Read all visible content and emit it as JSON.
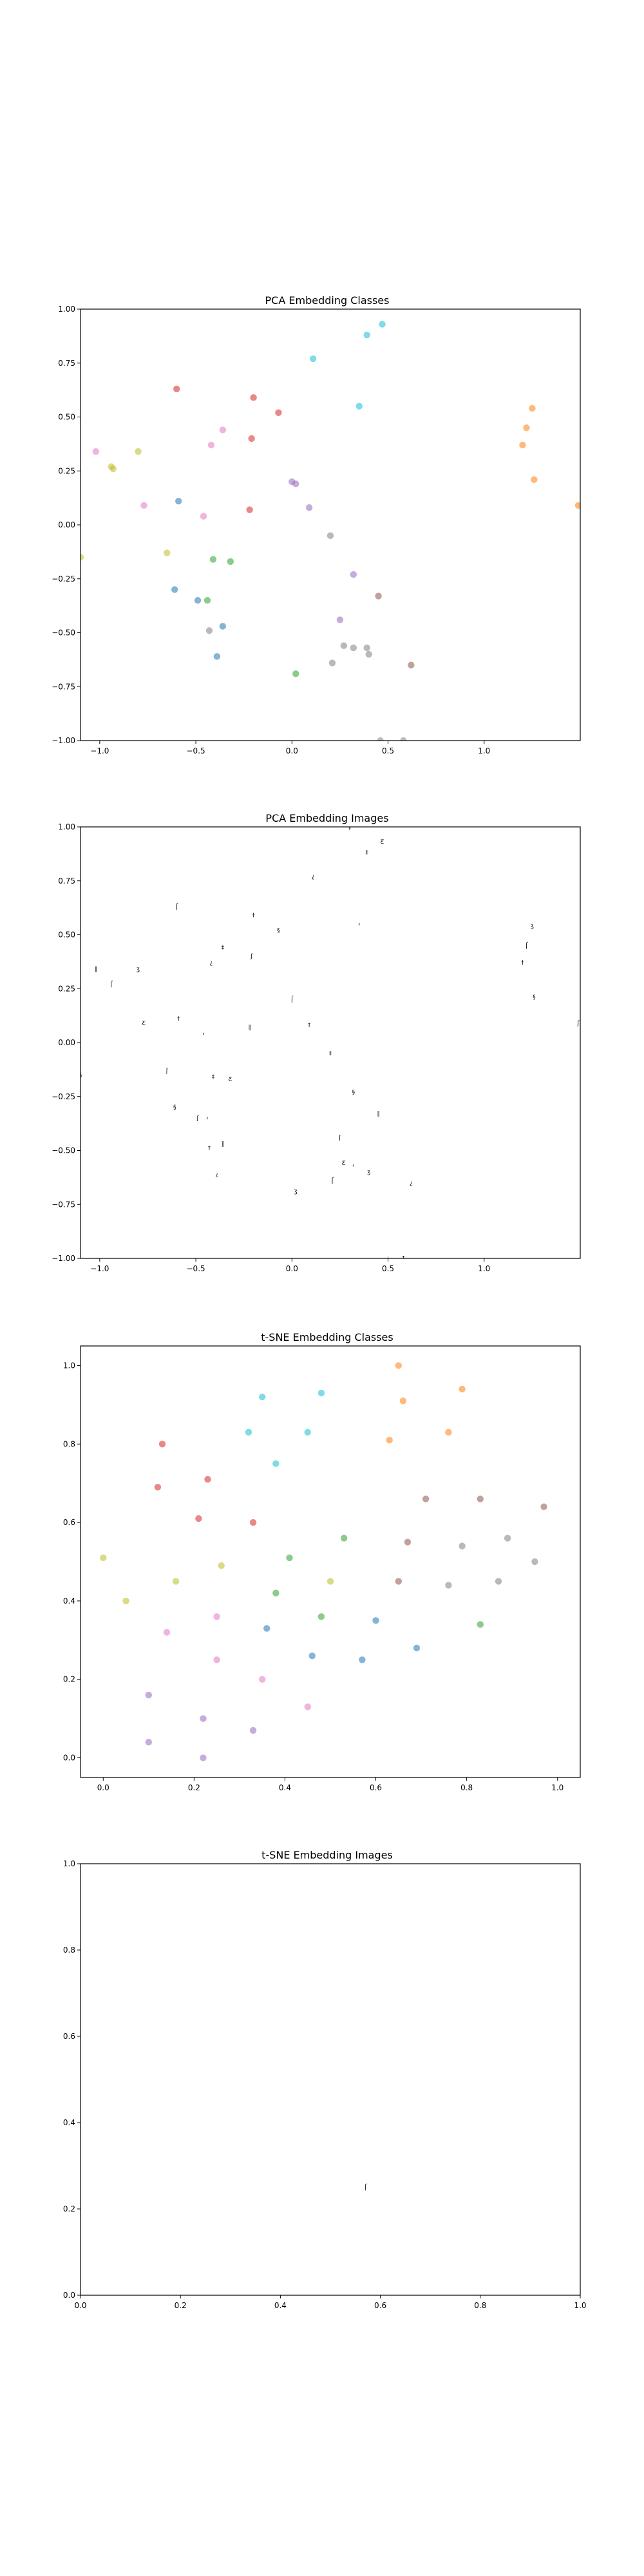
{
  "chart_data": [
    {
      "type": "scatter",
      "title": "PCA Embedding Classes",
      "xlim": [
        -1.1,
        1.5
      ],
      "ylim": [
        -1.0,
        1.0
      ],
      "xticks": [
        -1.0,
        -0.5,
        0.0,
        0.5,
        1.0
      ],
      "yticks": [
        -1.0,
        -0.75,
        -0.5,
        -0.25,
        0.0,
        0.25,
        0.5,
        0.75,
        1.0
      ],
      "xtick_labels": [
        "−1.0",
        "−0.5",
        "0.0",
        "0.5",
        "1.0"
      ],
      "ytick_labels": [
        "−1.00",
        "−0.75",
        "−0.50",
        "−0.25",
        "0.00",
        "0.25",
        "0.50",
        "0.75",
        "1.00"
      ],
      "grid": false,
      "series": [
        {
          "color": "#d62728",
          "points": [
            [
              -0.6,
              0.63
            ],
            [
              -0.2,
              0.59
            ],
            [
              -0.07,
              0.52
            ],
            [
              -0.21,
              0.4
            ],
            [
              -0.22,
              0.07
            ]
          ]
        },
        {
          "color": "#17becf",
          "points": [
            [
              0.11,
              0.77
            ],
            [
              0.39,
              0.88
            ],
            [
              0.47,
              0.93
            ],
            [
              0.35,
              0.55
            ]
          ]
        },
        {
          "color": "#ff7f0e",
          "points": [
            [
              1.25,
              0.54
            ],
            [
              1.22,
              0.45
            ],
            [
              1.2,
              0.37
            ],
            [
              1.26,
              0.21
            ],
            [
              1.49,
              0.09
            ]
          ]
        },
        {
          "color": "#e377c2",
          "points": [
            [
              -1.02,
              0.34
            ],
            [
              -0.42,
              0.37
            ],
            [
              -0.36,
              0.44
            ],
            [
              -0.77,
              0.09
            ],
            [
              -0.46,
              0.04
            ]
          ]
        },
        {
          "color": "#bcbd22",
          "points": [
            [
              -0.8,
              0.34
            ],
            [
              -0.94,
              0.27
            ],
            [
              -0.93,
              0.26
            ],
            [
              -0.65,
              -0.13
            ],
            [
              -1.1,
              -0.15
            ]
          ]
        },
        {
          "color": "#1f77b4",
          "points": [
            [
              -0.59,
              0.11
            ],
            [
              -0.61,
              -0.3
            ],
            [
              -0.49,
              -0.35
            ],
            [
              -0.36,
              -0.47
            ],
            [
              -0.39,
              -0.61
            ]
          ]
        },
        {
          "color": "#2ca02c",
          "points": [
            [
              -0.41,
              -0.16
            ],
            [
              -0.32,
              -0.17
            ],
            [
              -0.44,
              -0.35
            ],
            [
              0.02,
              -0.69
            ]
          ]
        },
        {
          "color": "#9467bd",
          "points": [
            [
              0.0,
              0.2
            ],
            [
              0.02,
              0.19
            ],
            [
              0.09,
              0.08
            ],
            [
              0.32,
              -0.23
            ],
            [
              0.25,
              -0.44
            ]
          ]
        },
        {
          "color": "#8c564b",
          "points": [
            [
              0.45,
              -0.33
            ],
            [
              0.62,
              -0.65
            ]
          ]
        },
        {
          "color": "#7f7f7f",
          "points": [
            [
              0.2,
              -0.05
            ],
            [
              0.27,
              -0.56
            ],
            [
              0.32,
              -0.57
            ],
            [
              0.39,
              -0.57
            ],
            [
              0.4,
              -0.6
            ],
            [
              0.21,
              -0.64
            ],
            [
              -0.43,
              -0.49
            ],
            [
              0.46,
              -1.0
            ],
            [
              0.58,
              -1.0
            ]
          ]
        }
      ]
    },
    {
      "type": "scatter",
      "title": "PCA Embedding Images",
      "xlim": [
        -1.1,
        1.5
      ],
      "ylim": [
        -1.0,
        1.0
      ],
      "xticks": [
        -1.0,
        -0.5,
        0.0,
        0.5,
        1.0
      ],
      "yticks": [
        -1.0,
        -0.75,
        -0.5,
        -0.25,
        0.0,
        0.25,
        0.5,
        0.75,
        1.0
      ],
      "xtick_labels": [
        "−1.0",
        "−0.5",
        "0.0",
        "0.5",
        "1.0"
      ],
      "ytick_labels": [
        "−1.00",
        "−0.75",
        "−0.50",
        "−0.25",
        "0.00",
        "0.25",
        "0.50",
        "0.75",
        "1.00"
      ],
      "grid": false,
      "marker": "image",
      "points": [
        [
          -0.6,
          0.63
        ],
        [
          -0.2,
          0.59
        ],
        [
          -0.07,
          0.52
        ],
        [
          -0.21,
          0.4
        ],
        [
          -0.22,
          0.07
        ],
        [
          0.11,
          0.77
        ],
        [
          0.39,
          0.88
        ],
        [
          0.47,
          0.93
        ],
        [
          0.35,
          0.55
        ],
        [
          1.25,
          0.54
        ],
        [
          1.22,
          0.45
        ],
        [
          1.2,
          0.37
        ],
        [
          1.26,
          0.21
        ],
        [
          1.49,
          0.09
        ],
        [
          -1.02,
          0.34
        ],
        [
          -0.42,
          0.37
        ],
        [
          -0.36,
          0.44
        ],
        [
          -0.77,
          0.09
        ],
        [
          -0.46,
          0.04
        ],
        [
          -0.8,
          0.34
        ],
        [
          -0.94,
          0.27
        ],
        [
          -0.59,
          0.11
        ],
        [
          -0.61,
          -0.3
        ],
        [
          -0.49,
          -0.35
        ],
        [
          -0.36,
          -0.47
        ],
        [
          -0.39,
          -0.61
        ],
        [
          -0.41,
          -0.16
        ],
        [
          -0.32,
          -0.17
        ],
        [
          -0.44,
          -0.35
        ],
        [
          0.02,
          -0.69
        ],
        [
          0.0,
          0.2
        ],
        [
          0.09,
          0.08
        ],
        [
          0.32,
          -0.23
        ],
        [
          0.25,
          -0.44
        ],
        [
          0.45,
          -0.33
        ],
        [
          0.62,
          -0.65
        ],
        [
          0.2,
          -0.05
        ],
        [
          0.27,
          -0.56
        ],
        [
          0.32,
          -0.57
        ],
        [
          0.4,
          -0.6
        ],
        [
          0.21,
          -0.64
        ],
        [
          -0.43,
          -0.49
        ],
        [
          -1.1,
          -0.15
        ],
        [
          -0.65,
          -0.13
        ],
        [
          0.3,
          1.0
        ],
        [
          0.5,
          -1.0
        ],
        [
          0.58,
          -1.0
        ]
      ]
    },
    {
      "type": "scatter",
      "title": "t-SNE Embedding Classes",
      "xlim": [
        -0.05,
        1.05
      ],
      "ylim": [
        -0.05,
        1.05
      ],
      "xticks": [
        0.0,
        0.2,
        0.4,
        0.6,
        0.8,
        1.0
      ],
      "yticks": [
        0.0,
        0.2,
        0.4,
        0.6,
        0.8,
        1.0
      ],
      "xtick_labels": [
        "0.0",
        "0.2",
        "0.4",
        "0.6",
        "0.8",
        "1.0"
      ],
      "ytick_labels": [
        "0.0",
        "0.2",
        "0.4",
        "0.6",
        "0.8",
        "1.0"
      ],
      "grid": false,
      "series": [
        {
          "color": "#d62728",
          "points": [
            [
              0.13,
              0.8
            ],
            [
              0.23,
              0.71
            ],
            [
              0.12,
              0.69
            ],
            [
              0.21,
              0.61
            ],
            [
              0.33,
              0.6
            ]
          ]
        },
        {
          "color": "#17becf",
          "points": [
            [
              0.35,
              0.92
            ],
            [
              0.48,
              0.93
            ],
            [
              0.32,
              0.83
            ],
            [
              0.45,
              0.83
            ],
            [
              0.38,
              0.75
            ]
          ]
        },
        {
          "color": "#ff7f0e",
          "points": [
            [
              0.65,
              1.0
            ],
            [
              0.79,
              0.94
            ],
            [
              0.66,
              0.91
            ],
            [
              0.63,
              0.81
            ],
            [
              0.76,
              0.83
            ]
          ]
        },
        {
          "color": "#8c564b",
          "points": [
            [
              0.71,
              0.66
            ],
            [
              0.83,
              0.66
            ],
            [
              0.97,
              0.64
            ],
            [
              0.67,
              0.55
            ],
            [
              0.65,
              0.45
            ]
          ]
        },
        {
          "color": "#7f7f7f",
          "points": [
            [
              0.79,
              0.54
            ],
            [
              0.89,
              0.56
            ],
            [
              0.95,
              0.5
            ],
            [
              0.87,
              0.45
            ],
            [
              0.76,
              0.44
            ]
          ]
        },
        {
          "color": "#bcbd22",
          "points": [
            [
              0.0,
              0.51
            ],
            [
              0.05,
              0.4
            ],
            [
              0.16,
              0.45
            ],
            [
              0.26,
              0.49
            ],
            [
              0.5,
              0.45
            ]
          ]
        },
        {
          "color": "#2ca02c",
          "points": [
            [
              0.41,
              0.51
            ],
            [
              0.53,
              0.56
            ],
            [
              0.38,
              0.42
            ],
            [
              0.48,
              0.36
            ],
            [
              0.83,
              0.34
            ]
          ]
        },
        {
          "color": "#1f77b4",
          "points": [
            [
              0.36,
              0.33
            ],
            [
              0.6,
              0.35
            ],
            [
              0.46,
              0.26
            ],
            [
              0.57,
              0.25
            ],
            [
              0.69,
              0.28
            ]
          ]
        },
        {
          "color": "#e377c2",
          "points": [
            [
              0.14,
              0.32
            ],
            [
              0.25,
              0.36
            ],
            [
              0.25,
              0.25
            ],
            [
              0.35,
              0.2
            ],
            [
              0.45,
              0.13
            ]
          ]
        },
        {
          "color": "#9467bd",
          "points": [
            [
              0.1,
              0.16
            ],
            [
              0.22,
              0.1
            ],
            [
              0.1,
              0.04
            ],
            [
              0.22,
              0.0
            ],
            [
              0.33,
              0.07
            ]
          ]
        }
      ]
    },
    {
      "type": "scatter",
      "title": "t-SNE Embedding Images",
      "xlim": [
        0.0,
        1.0
      ],
      "ylim": [
        0.0,
        1.0
      ],
      "xticks": [
        0.0,
        0.2,
        0.4,
        0.6,
        0.8,
        1.0
      ],
      "yticks": [
        0.0,
        0.2,
        0.4,
        0.6,
        0.8,
        1.0
      ],
      "xtick_labels": [
        "0.0",
        "0.2",
        "0.4",
        "0.6",
        "0.8",
        "1.0"
      ],
      "ytick_labels": [
        "0.0",
        "0.2",
        "0.4",
        "0.6",
        "0.8",
        "1.0"
      ],
      "grid": false,
      "marker": "image",
      "points": [
        [
          0.57,
          0.25
        ]
      ]
    }
  ]
}
